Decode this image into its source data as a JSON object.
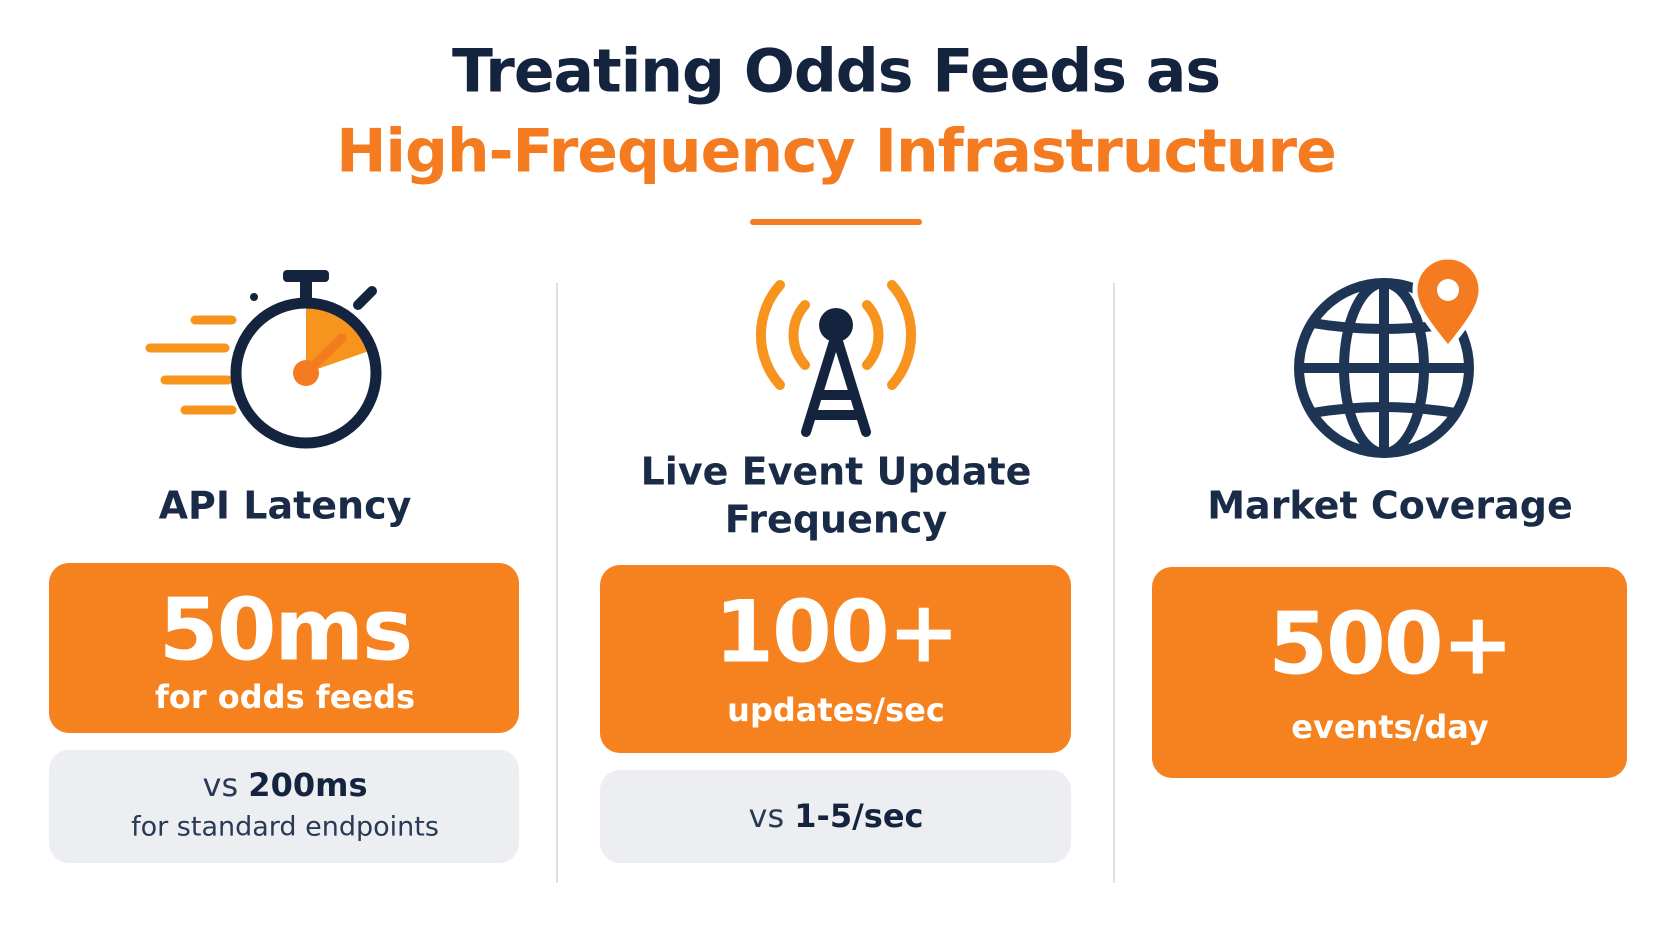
{
  "title": {
    "line1": "Treating Odds Feeds as",
    "line2": "High-Frequency Infrastructure"
  },
  "metrics": [
    {
      "label": [
        "API Latency"
      ],
      "value": "50ms",
      "unit": "for odds feeds",
      "comparison": {
        "prefix": "vs",
        "value": "200ms",
        "note": "for standard endpoints"
      }
    },
    {
      "label": [
        "Live Event Update",
        "Frequency"
      ],
      "value": "100+",
      "unit": "updates/sec",
      "comparison": {
        "prefix": "vs",
        "value": "1-5/sec"
      }
    },
    {
      "label": [
        "Market Coverage"
      ],
      "value": "500+",
      "unit": "events/day"
    }
  ]
}
